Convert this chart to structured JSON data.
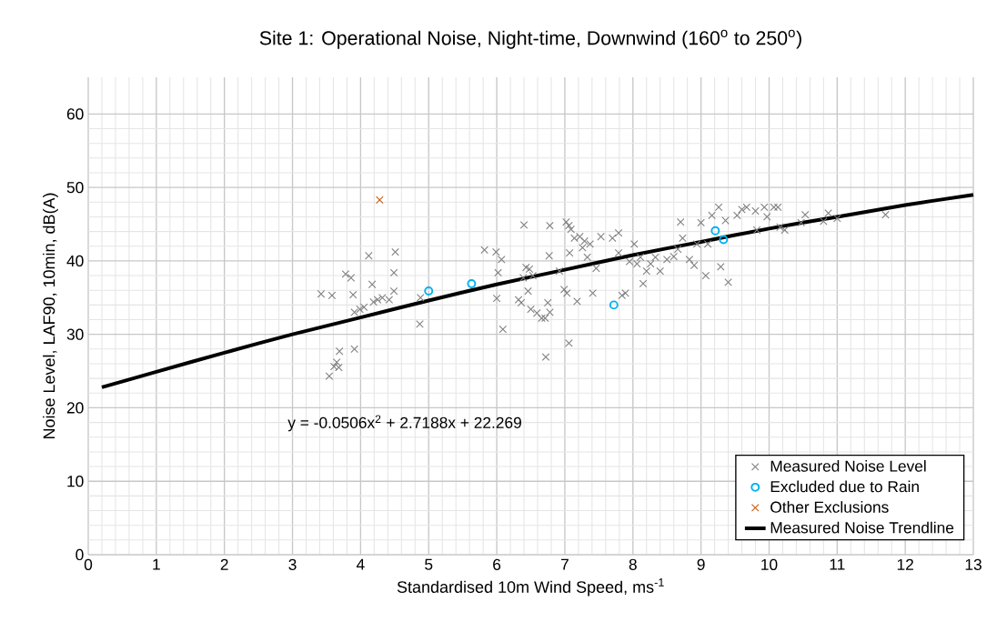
{
  "chart_data": {
    "type": "scatter",
    "title": "Site 1: Operational Noise, Night-time, Downwind (160$^{o}$ to 250$^{o}$)",
    "xlabel": "Standardised 10m Wind Speed, ms$^{-1}$",
    "ylabel": "Noise Level, LAF90, 10min, dB(A)",
    "xlim": [
      0,
      13
    ],
    "ylim": [
      0,
      65
    ],
    "xticks": [
      0,
      1,
      2,
      3,
      4,
      5,
      6,
      7,
      8,
      9,
      10,
      11,
      12,
      13
    ],
    "yticks": [
      0,
      10,
      20,
      30,
      40,
      50,
      60
    ],
    "grid": true,
    "legend": "bottom right",
    "annotations": [
      "y = -0.0506x$^{2}$ + 2.7188x + 22.269"
    ],
    "series": [
      {
        "name": "Measured Noise Level",
        "color": "#7f7f7f",
        "marker": "cross",
        "x": [
          3.42,
          3.58,
          3.54,
          3.61,
          3.65,
          3.68,
          3.69,
          3.78,
          3.86,
          3.89,
          3.91,
          3.91,
          3.99,
          4.05,
          4.12,
          4.17,
          4.19,
          4.25,
          4.32,
          4.42,
          4.49,
          4.49,
          4.51,
          4.87,
          4.88,
          5.82,
          5.99,
          6.02,
          6.0,
          6.09,
          6.07,
          6.32,
          6.36,
          6.39,
          6.4,
          6.43,
          6.48,
          6.53,
          6.46,
          6.5,
          6.59,
          6.66,
          6.71,
          6.78,
          6.75,
          6.72,
          6.78,
          6.77,
          6.92,
          6.99,
          7.02,
          7.06,
          7.03,
          7.06,
          7.07,
          7.09,
          7.14,
          7.18,
          7.22,
          7.26,
          7.29,
          7.33,
          7.37,
          7.41,
          7.46,
          7.53,
          7.7,
          7.79,
          7.79,
          7.84,
          7.89,
          7.95,
          8.02,
          8.06,
          8.11,
          8.2,
          8.15,
          8.26,
          8.33,
          8.4,
          8.5,
          8.6,
          8.66,
          8.7,
          8.73,
          8.83,
          8.9,
          8.94,
          9.0,
          9.07,
          9.1,
          9.16,
          9.26,
          9.29,
          9.36,
          9.4,
          9.53,
          9.6,
          9.67,
          9.8,
          9.82,
          9.93,
          9.97,
          10.07,
          10.13,
          10.16,
          10.23,
          10.47,
          10.53,
          10.8,
          10.87,
          11.0,
          11.71
        ],
        "values": [
          35.5,
          35.3,
          24.3,
          25.6,
          26.2,
          25.5,
          27.7,
          38.2,
          37.7,
          35.4,
          33.0,
          28.0,
          33.4,
          33.7,
          40.7,
          36.8,
          34.4,
          34.7,
          35.0,
          34.7,
          38.4,
          35.9,
          41.2,
          31.4,
          35.0,
          41.5,
          41.2,
          38.4,
          34.9,
          30.7,
          40.2,
          34.7,
          34.3,
          37.7,
          44.9,
          39.1,
          38.9,
          38.0,
          35.9,
          33.4,
          32.9,
          32.2,
          32.2,
          33.0,
          34.3,
          26.9,
          44.8,
          40.7,
          38.6,
          36.1,
          45.3,
          44.8,
          35.6,
          28.8,
          41.1,
          44.3,
          43.1,
          34.5,
          43.3,
          41.8,
          42.7,
          40.5,
          42.3,
          35.6,
          39.0,
          43.3,
          43.1,
          43.8,
          41.1,
          35.3,
          35.6,
          39.9,
          42.3,
          39.6,
          40.5,
          38.6,
          36.9,
          39.6,
          40.5,
          38.6,
          40.2,
          40.6,
          41.6,
          45.3,
          43.1,
          40.2,
          39.4,
          42.3,
          45.2,
          38.0,
          42.3,
          46.2,
          47.3,
          39.2,
          45.5,
          37.1,
          46.2,
          47.0,
          47.3,
          46.8,
          44.2,
          47.3,
          46.0,
          47.3,
          47.3,
          44.6,
          44.2,
          45.2,
          46.3,
          45.4,
          46.5,
          45.8,
          46.3
        ]
      },
      {
        "name": "Excluded due to Rain",
        "color": "#00b0f0",
        "marker": "circle",
        "x": [
          5.0,
          5.63,
          7.72,
          9.21,
          9.33
        ],
        "values": [
          35.9,
          36.9,
          34.0,
          44.1,
          42.9
        ]
      },
      {
        "name": "Other Exclusions",
        "color": "#c55a11",
        "marker": "cross",
        "x": [
          4.28
        ],
        "values": [
          48.3
        ]
      },
      {
        "name": "Measured Noise Trendline",
        "color": "#000000",
        "type": "line",
        "marker": "none",
        "x": [
          0.2,
          1,
          2,
          3,
          4,
          5,
          6,
          7,
          8,
          9,
          10,
          11,
          12,
          13
        ],
        "values": [
          22.8,
          24.9,
          27.5,
          30.0,
          32.3,
          34.6,
          36.8,
          38.8,
          40.8,
          42.6,
          44.4,
          46.0,
          47.6,
          49.0
        ]
      }
    ]
  }
}
